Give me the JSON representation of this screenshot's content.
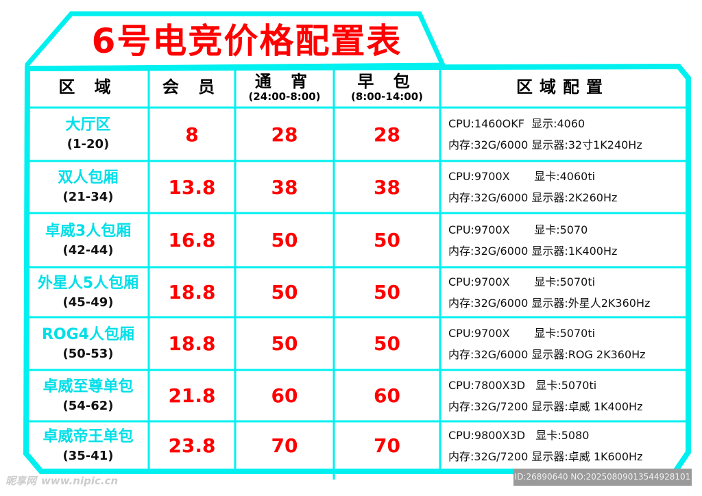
{
  "title": "6号电竞价格配置表",
  "colors": {
    "frame": "#00f0f0",
    "price": "#ff0000",
    "region": "#00dfe8"
  },
  "headers": [
    {
      "label": "区 域",
      "sub": ""
    },
    {
      "label": "会 员",
      "sub": ""
    },
    {
      "label": "通 宵",
      "sub": "(24:00-8:00)"
    },
    {
      "label": "早 包",
      "sub": "(8:00-14:00)"
    },
    {
      "label": "区域配置",
      "sub": ""
    }
  ],
  "rows": [
    {
      "name": "大厅区",
      "range": "(1-20)",
      "member": "8",
      "overnight": "28",
      "morning": "28",
      "cfg1": "CPU:1460OKF  显示:4060",
      "cfg2": "内存:32G/6000 显示器:32寸1K240Hz"
    },
    {
      "name": "双人包厢",
      "range": "(21-34)",
      "member": "13.8",
      "overnight": "38",
      "morning": "38",
      "cfg1": "CPU:9700X       显卡:4060ti",
      "cfg2": "内存:32G/6000 显示器:2K260Hz"
    },
    {
      "name": "卓威3人包厢",
      "range": "(42-44)",
      "member": "16.8",
      "overnight": "50",
      "morning": "50",
      "cfg1": "CPU:9700X       显卡:5070",
      "cfg2": "内存:32G/6000 显示器:1K400Hz"
    },
    {
      "name": "外星人5人包厢",
      "range": "(45-49)",
      "member": "18.8",
      "overnight": "50",
      "morning": "50",
      "cfg1": "CPU:9700X       显卡:5070ti",
      "cfg2": "内存:32G/6000 显示器:外星人2K360Hz"
    },
    {
      "name": "ROG4人包厢",
      "range": "(50-53)",
      "member": "18.8",
      "overnight": "50",
      "morning": "50",
      "cfg1": "CPU:9700X       显卡:5070ti",
      "cfg2": "内存:32G/6000 显示器:ROG 2K360Hz"
    },
    {
      "name": "卓威至尊单包",
      "range": "(54-62)",
      "member": "21.8",
      "overnight": "60",
      "morning": "60",
      "cfg1": "CPU:7800X3D   显卡:5070ti",
      "cfg2": "内存:32G/7200 显示器:卓威 1K400Hz"
    },
    {
      "name": "卓威帝王单包",
      "range": "(35-41)",
      "member": "23.8",
      "overnight": "70",
      "morning": "70",
      "cfg1": "CPU:9800X3D   显卡:5080",
      "cfg2": "内存:32G/7200 显示器:卓威 1K600Hz"
    }
  ],
  "watermark": {
    "logo": "昵享网",
    "site": "www.nipic.cn",
    "id": "ID:26890640 NO:20250809013544928101"
  }
}
